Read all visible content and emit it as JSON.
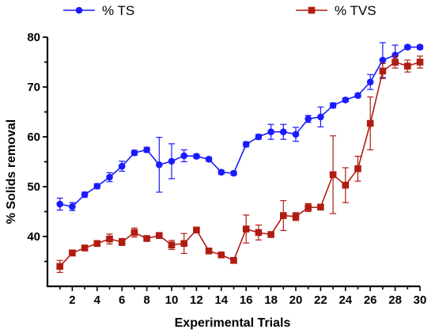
{
  "chart_data": {
    "type": "line",
    "xlabel": "Experimental Trials",
    "ylabel": "% Solids removal",
    "xlim": [
      0,
      30
    ],
    "ylim": [
      30,
      80
    ],
    "x_ticks": [
      2,
      4,
      6,
      8,
      10,
      12,
      14,
      16,
      18,
      20,
      22,
      24,
      26,
      28,
      30
    ],
    "y_ticks": [
      40,
      50,
      60,
      70,
      80
    ],
    "grid": false,
    "legend_position": "top",
    "x": [
      1,
      2,
      3,
      4,
      5,
      6,
      7,
      8,
      9,
      10,
      11,
      12,
      13,
      14,
      15,
      16,
      17,
      18,
      19,
      20,
      21,
      22,
      23,
      24,
      25,
      26,
      27,
      28,
      29,
      30
    ],
    "series": [
      {
        "name": "% TS",
        "color": "#1a1aff",
        "marker": "circle",
        "values": [
          46.5,
          46.0,
          48.4,
          50.1,
          51.9,
          54.1,
          56.8,
          57.4,
          54.4,
          55.1,
          56.2,
          56.1,
          55.5,
          52.9,
          52.7,
          58.5,
          60.0,
          61.0,
          61.0,
          60.5,
          63.6,
          64.0,
          66.3,
          67.4,
          68.3,
          71.0,
          75.4,
          76.4,
          78.0,
          78.0
        ],
        "errors": [
          1.2,
          0.8,
          0.5,
          0.5,
          0.9,
          1.0,
          0.5,
          0.5,
          5.5,
          3.5,
          1.2,
          0.4,
          0.4,
          0.4,
          0.4,
          0.5,
          0.5,
          1.5,
          1.5,
          1.4,
          0.7,
          2.0,
          0.5,
          0.4,
          0.4,
          1.5,
          3.5,
          2.0,
          0.4,
          0.4
        ]
      },
      {
        "name": "% TVS",
        "color": "#b01c10",
        "marker": "square",
        "values": [
          34.0,
          36.7,
          37.7,
          38.6,
          39.5,
          38.9,
          40.8,
          39.6,
          40.2,
          38.3,
          38.6,
          41.3,
          37.1,
          36.3,
          35.2,
          41.5,
          40.8,
          40.4,
          44.2,
          44.0,
          45.8,
          45.9,
          52.4,
          50.3,
          53.6,
          62.7,
          73.2,
          75.0,
          74.2,
          75.0
        ],
        "errors": [
          1.2,
          0.6,
          0.5,
          0.5,
          1.0,
          0.7,
          0.9,
          0.5,
          0.5,
          0.9,
          2.0,
          0.5,
          0.5,
          0.5,
          0.5,
          2.8,
          1.5,
          0.5,
          3.0,
          0.8,
          0.8,
          0.5,
          7.8,
          3.5,
          2.5,
          5.3,
          1.5,
          1.2,
          1.2,
          1.2
        ]
      }
    ]
  }
}
